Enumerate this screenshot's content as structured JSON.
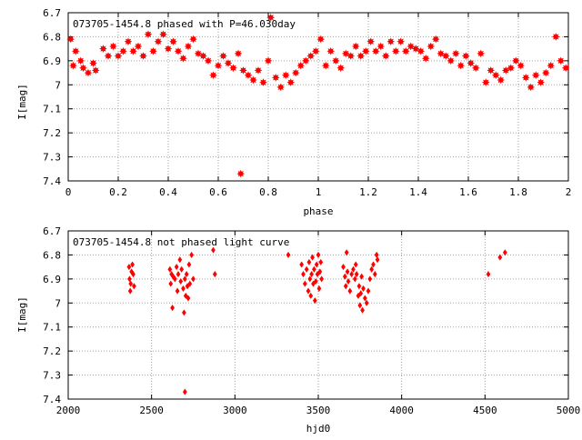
{
  "chart_data": [
    {
      "type": "scatter",
      "title": "073705-1454.8 phased with P=46.030day",
      "xlabel": "phase",
      "ylabel": "I[mag]",
      "xlim": [
        0,
        2
      ],
      "ylim": [
        6.7,
        7.4
      ],
      "y_inverted": true,
      "grid": true,
      "xticks": [
        "0",
        "0.2",
        "0.4",
        "0.6",
        "0.8",
        "1",
        "1.2",
        "1.4",
        "1.6",
        "1.8",
        "2"
      ],
      "yticks": [
        "6.7",
        "6.8",
        "6.9",
        "7",
        "7.1",
        "7.2",
        "7.3",
        "7.4"
      ],
      "marker": "star",
      "color": "#ff0000",
      "series": [
        {
          "points": [
            [
              0.01,
              6.81
            ],
            [
              0.02,
              6.92
            ],
            [
              0.03,
              6.86
            ],
            [
              0.05,
              6.9
            ],
            [
              0.06,
              6.93
            ],
            [
              0.08,
              6.95
            ],
            [
              0.1,
              6.91
            ],
            [
              0.11,
              6.94
            ],
            [
              0.14,
              6.85
            ],
            [
              0.16,
              6.88
            ],
            [
              0.18,
              6.84
            ],
            [
              0.2,
              6.88
            ],
            [
              0.22,
              6.86
            ],
            [
              0.24,
              6.82
            ],
            [
              0.26,
              6.86
            ],
            [
              0.28,
              6.84
            ],
            [
              0.3,
              6.88
            ],
            [
              0.32,
              6.79
            ],
            [
              0.34,
              6.86
            ],
            [
              0.36,
              6.82
            ],
            [
              0.38,
              6.79
            ],
            [
              0.4,
              6.85
            ],
            [
              0.42,
              6.82
            ],
            [
              0.44,
              6.86
            ],
            [
              0.46,
              6.89
            ],
            [
              0.48,
              6.84
            ],
            [
              0.5,
              6.81
            ],
            [
              0.52,
              6.87
            ],
            [
              0.54,
              6.88
            ],
            [
              0.56,
              6.9
            ],
            [
              0.58,
              6.96
            ],
            [
              0.6,
              6.92
            ],
            [
              0.62,
              6.88
            ],
            [
              0.64,
              6.91
            ],
            [
              0.66,
              6.93
            ],
            [
              0.68,
              6.87
            ],
            [
              0.69,
              7.37
            ],
            [
              0.7,
              6.94
            ],
            [
              0.72,
              6.96
            ],
            [
              0.74,
              6.98
            ],
            [
              0.76,
              6.94
            ],
            [
              0.78,
              6.99
            ],
            [
              0.8,
              6.9
            ],
            [
              0.81,
              6.72
            ],
            [
              0.83,
              6.97
            ],
            [
              0.85,
              7.01
            ],
            [
              0.87,
              6.96
            ],
            [
              0.89,
              6.99
            ],
            [
              0.91,
              6.95
            ],
            [
              0.93,
              6.92
            ],
            [
              0.95,
              6.9
            ],
            [
              0.97,
              6.88
            ],
            [
              0.99,
              6.86
            ],
            [
              1.01,
              6.81
            ],
            [
              1.03,
              6.92
            ],
            [
              1.05,
              6.86
            ],
            [
              1.07,
              6.9
            ],
            [
              1.09,
              6.93
            ],
            [
              1.11,
              6.87
            ],
            [
              1.13,
              6.88
            ],
            [
              1.15,
              6.84
            ],
            [
              1.17,
              6.88
            ],
            [
              1.19,
              6.86
            ],
            [
              1.21,
              6.82
            ],
            [
              1.23,
              6.86
            ],
            [
              1.25,
              6.84
            ],
            [
              1.27,
              6.88
            ],
            [
              1.29,
              6.82
            ],
            [
              1.31,
              6.86
            ],
            [
              1.33,
              6.82
            ],
            [
              1.35,
              6.86
            ],
            [
              1.37,
              6.84
            ],
            [
              1.39,
              6.85
            ],
            [
              1.41,
              6.86
            ],
            [
              1.43,
              6.89
            ],
            [
              1.45,
              6.84
            ],
            [
              1.47,
              6.81
            ],
            [
              1.49,
              6.87
            ],
            [
              1.51,
              6.88
            ],
            [
              1.53,
              6.9
            ],
            [
              1.55,
              6.87
            ],
            [
              1.57,
              6.92
            ],
            [
              1.59,
              6.88
            ],
            [
              1.61,
              6.91
            ],
            [
              1.63,
              6.93
            ],
            [
              1.65,
              6.87
            ],
            [
              1.67,
              6.99
            ],
            [
              1.69,
              6.94
            ],
            [
              1.71,
              6.96
            ],
            [
              1.73,
              6.98
            ],
            [
              1.75,
              6.94
            ],
            [
              1.77,
              6.93
            ],
            [
              1.79,
              6.9
            ],
            [
              1.81,
              6.92
            ],
            [
              1.83,
              6.97
            ],
            [
              1.85,
              7.01
            ],
            [
              1.87,
              6.96
            ],
            [
              1.89,
              6.99
            ],
            [
              1.91,
              6.95
            ],
            [
              1.93,
              6.92
            ],
            [
              1.95,
              6.8
            ],
            [
              1.97,
              6.9
            ],
            [
              1.99,
              6.93
            ]
          ]
        }
      ]
    },
    {
      "type": "scatter",
      "title": "073705-1454.8 not phased light curve",
      "xlabel": "hjd0",
      "ylabel": "I[mag]",
      "xlim": [
        2000,
        5000
      ],
      "ylim": [
        6.7,
        7.4
      ],
      "y_inverted": true,
      "grid": true,
      "xticks": [
        "2000",
        "2500",
        "3000",
        "3500",
        "4000",
        "4500",
        "5000"
      ],
      "yticks": [
        "6.7",
        "6.8",
        "6.9",
        "7",
        "7.1",
        "7.2",
        "7.3",
        "7.4"
      ],
      "marker": "diamond",
      "color": "#ff0000",
      "series": [
        {
          "points": [
            [
              2365,
              6.85
            ],
            [
              2368,
              6.9
            ],
            [
              2372,
              6.95
            ],
            [
              2375,
              6.92
            ],
            [
              2380,
              6.87
            ],
            [
              2385,
              6.84
            ],
            [
              2390,
              6.88
            ],
            [
              2395,
              6.93
            ],
            [
              2610,
              6.86
            ],
            [
              2615,
              6.92
            ],
            [
              2620,
              6.88
            ],
            [
              2625,
              7.02
            ],
            [
              2630,
              6.89
            ],
            [
              2640,
              6.9
            ],
            [
              2650,
              6.85
            ],
            [
              2655,
              6.95
            ],
            [
              2660,
              6.88
            ],
            [
              2670,
              6.82
            ],
            [
              2675,
              6.91
            ],
            [
              2680,
              6.86
            ],
            [
              2690,
              6.94
            ],
            [
              2695,
              7.04
            ],
            [
              2700,
              6.9
            ],
            [
              2700,
              7.37
            ],
            [
              2705,
              6.97
            ],
            [
              2710,
              6.88
            ],
            [
              2715,
              6.93
            ],
            [
              2720,
              6.98
            ],
            [
              2725,
              6.84
            ],
            [
              2730,
              6.92
            ],
            [
              2740,
              6.8
            ],
            [
              2750,
              6.9
            ],
            [
              2870,
              6.78
            ],
            [
              2880,
              6.88
            ],
            [
              3320,
              6.8
            ],
            [
              3400,
              6.84
            ],
            [
              3410,
              6.88
            ],
            [
              3420,
              6.92
            ],
            [
              3430,
              6.86
            ],
            [
              3440,
              6.95
            ],
            [
              3445,
              6.83
            ],
            [
              3450,
              6.9
            ],
            [
              3455,
              6.97
            ],
            [
              3460,
              6.88
            ],
            [
              3465,
              6.81
            ],
            [
              3470,
              6.92
            ],
            [
              3475,
              6.86
            ],
            [
              3480,
              6.99
            ],
            [
              3485,
              6.91
            ],
            [
              3490,
              6.84
            ],
            [
              3495,
              6.88
            ],
            [
              3500,
              6.8
            ],
            [
              3505,
              6.94
            ],
            [
              3510,
              6.87
            ],
            [
              3515,
              6.83
            ],
            [
              3520,
              6.9
            ],
            [
              3650,
              6.85
            ],
            [
              3660,
              6.89
            ],
            [
              3665,
              6.93
            ],
            [
              3670,
              6.79
            ],
            [
              3675,
              6.87
            ],
            [
              3680,
              6.91
            ],
            [
              3690,
              6.95
            ],
            [
              3700,
              6.88
            ],
            [
              3710,
              6.86
            ],
            [
              3720,
              6.9
            ],
            [
              3725,
              6.84
            ],
            [
              3730,
              6.88
            ],
            [
              3740,
              6.97
            ],
            [
              3745,
              6.93
            ],
            [
              3750,
              7.01
            ],
            [
              3755,
              6.96
            ],
            [
              3760,
              6.89
            ],
            [
              3765,
              7.03
            ],
            [
              3770,
              6.94
            ],
            [
              3780,
              6.98
            ],
            [
              3790,
              7.0
            ],
            [
              3800,
              6.95
            ],
            [
              3810,
              6.9
            ],
            [
              3820,
              6.86
            ],
            [
              3830,
              6.84
            ],
            [
              3840,
              6.88
            ],
            [
              3850,
              6.8
            ],
            [
              3855,
              6.82
            ],
            [
              4520,
              6.88
            ],
            [
              4590,
              6.81
            ],
            [
              4620,
              6.79
            ]
          ]
        }
      ]
    }
  ]
}
